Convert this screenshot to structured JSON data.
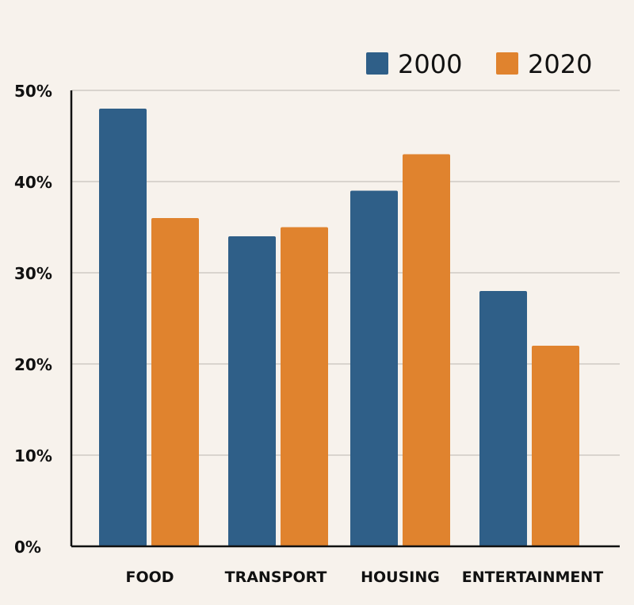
{
  "chart_data": {
    "type": "bar",
    "title": "",
    "xlabel": "",
    "ylabel": "",
    "categories": [
      "FOOD",
      "TRANSPORT",
      "HOUSING",
      "ENTERTAINMENT"
    ],
    "series": [
      {
        "name": "2000",
        "color": "#2f5f88",
        "values": [
          48,
          34,
          39,
          28
        ]
      },
      {
        "name": "2020",
        "color": "#e0832e",
        "values": [
          36,
          35,
          43,
          22
        ]
      }
    ],
    "ylim": [
      0,
      50
    ],
    "yticks": [
      0,
      10,
      20,
      30,
      40,
      50
    ],
    "ytick_labels": [
      "0%",
      "10%",
      "20%",
      "30%",
      "40%",
      "50%"
    ],
    "grid": true,
    "legend_position": "top-right"
  }
}
